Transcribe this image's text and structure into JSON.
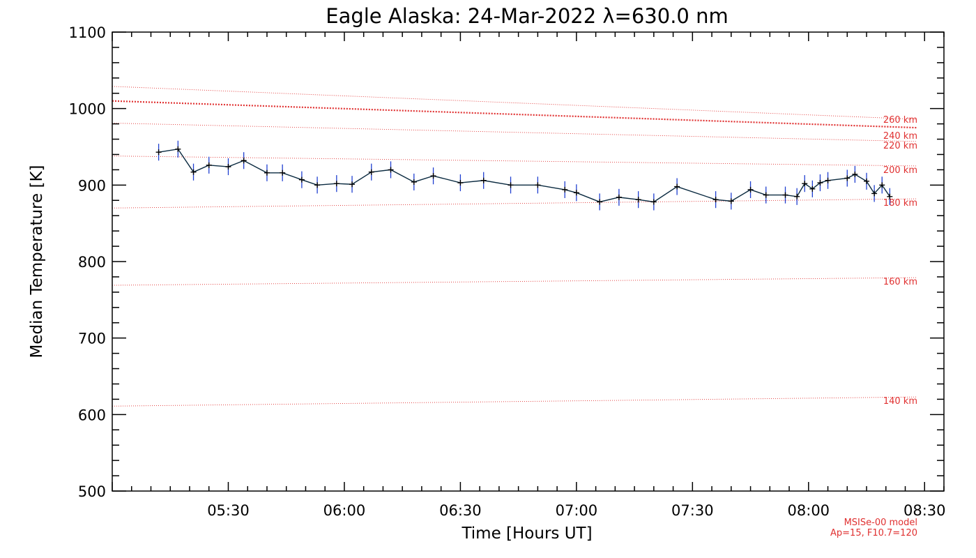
{
  "chart_data": {
    "type": "line",
    "title": "Eagle Alaska: 24-Mar-2022 λ=630.0 nm",
    "xlabel": "Time [Hours UT]",
    "ylabel": "Median Temperature [K]",
    "xlim": [
      "05:00",
      "08:35"
    ],
    "ylim": [
      500,
      1100
    ],
    "x_tick_labels": [
      "05:30",
      "06:00",
      "06:30",
      "07:00",
      "07:30",
      "08:00",
      "08:30"
    ],
    "y_tick_labels": [
      "500",
      "600",
      "700",
      "800",
      "900",
      "1000",
      "1100"
    ],
    "grid": false,
    "colors": {
      "series": "#0a2a40",
      "error_bars": "#1f3fd0",
      "model": "#e03030",
      "axes": "#000000"
    },
    "series": [
      {
        "x": [
          "05:12",
          "05:17",
          "05:21",
          "05:25",
          "05:30",
          "05:34",
          "05:40",
          "05:44",
          "05:49",
          "05:53",
          "05:58",
          "06:02",
          "06:07",
          "06:12",
          "06:18",
          "06:23",
          "06:30",
          "06:36",
          "06:43",
          "06:50",
          "06:57",
          "07:00",
          "07:06",
          "07:11",
          "07:16",
          "07:20",
          "07:26",
          "07:36",
          "07:40",
          "07:45",
          "07:49",
          "07:54",
          "07:57",
          "07:59",
          "08:01",
          "08:03",
          "08:05",
          "08:10",
          "08:12",
          "08:15",
          "08:17",
          "08:19",
          "08:21"
        ],
        "y": [
          943,
          947,
          917,
          926,
          924,
          932,
          916,
          916,
          907,
          900,
          902,
          901,
          917,
          920,
          904,
          912,
          903,
          906,
          900,
          900,
          894,
          890,
          878,
          884,
          881,
          878,
          898,
          881,
          879,
          894,
          887,
          887,
          885,
          902,
          895,
          903,
          906,
          909,
          914,
          905,
          889,
          900,
          885
        ],
        "error": [
          11,
          11,
          11,
          11,
          11,
          11,
          11,
          11,
          11,
          11,
          11,
          11,
          11,
          11,
          11,
          11,
          11,
          11,
          11,
          11,
          11,
          11,
          11,
          11,
          11,
          11,
          11,
          11,
          11,
          11,
          11,
          11,
          11,
          11,
          11,
          11,
          11,
          11,
          11,
          11,
          11,
          11,
          11
        ]
      }
    ],
    "model_curves": [
      {
        "label": "140 km",
        "x": [
          "05:00",
          "08:28"
        ],
        "y": [
          611,
          623
        ]
      },
      {
        "label": "160 km",
        "x": [
          "05:00",
          "08:28"
        ],
        "y": [
          769,
          779
        ]
      },
      {
        "label": "180 km",
        "x": [
          "05:00",
          "08:28"
        ],
        "y": [
          870,
          882
        ]
      },
      {
        "label": "200 km",
        "x": [
          "05:00",
          "08:28"
        ],
        "y": [
          938,
          925
        ]
      },
      {
        "label": "220 km",
        "x": [
          "05:00",
          "08:28"
        ],
        "y": [
          981,
          957
        ]
      },
      {
        "label": "240 km",
        "x": [
          "05:00",
          "08:28"
        ],
        "y": [
          1010,
          975
        ]
      },
      {
        "label": "260 km",
        "x": [
          "05:00",
          "08:28"
        ],
        "y": [
          1029,
          986
        ]
      }
    ],
    "emphasized_model": "240 km",
    "note_lines": [
      "MSISe-00 model",
      "Ap=15, F10.7=120"
    ]
  }
}
